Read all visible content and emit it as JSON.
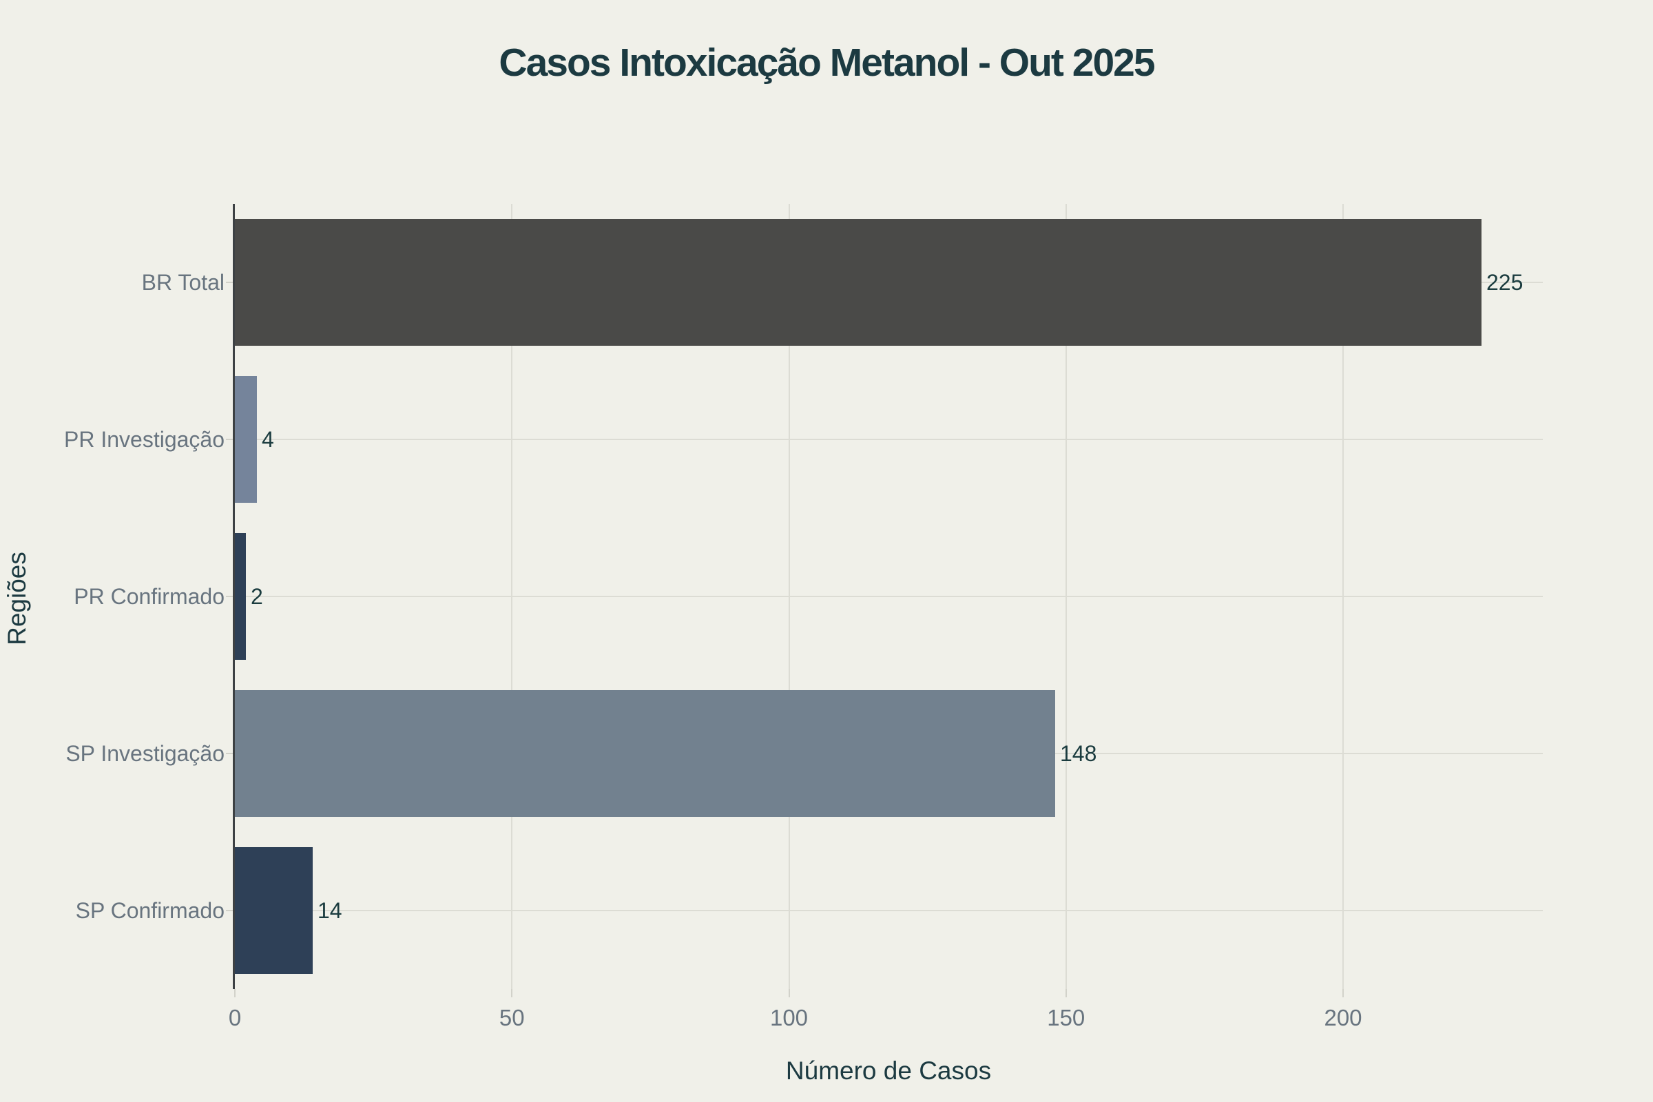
{
  "chart_data": {
    "type": "bar",
    "orientation": "horizontal",
    "title": "Casos Intoxicação Metanol - Out 2025",
    "xlabel": "Número de Casos",
    "ylabel": "Regiões",
    "categories": [
      "BR Total",
      "PR Investigação",
      "PR Confirmado",
      "SP Investigação",
      "SP Confirmado"
    ],
    "values": [
      225,
      4,
      2,
      148,
      14
    ],
    "value_labels": [
      "225",
      "4",
      "2",
      "148",
      "14"
    ],
    "bar_colors": [
      "#4a4a48",
      "#75849b",
      "#2e4057",
      "#72818f",
      "#2e4057"
    ],
    "x_ticks": [
      0,
      50,
      100,
      150,
      200
    ],
    "x_tick_labels": [
      "0",
      "50",
      "100",
      "150",
      "200"
    ],
    "xlim": [
      0,
      236
    ],
    "grid": true,
    "legend": "none"
  },
  "colors": {
    "background": "#f0f0e9",
    "gridline": "#dcdcd4",
    "axis_line": "#3d4144",
    "tick_mark": "#d2d2ca",
    "axis_label": "#68747f",
    "value_label": "#1b3c3f",
    "title_text": "#1c3a41"
  }
}
